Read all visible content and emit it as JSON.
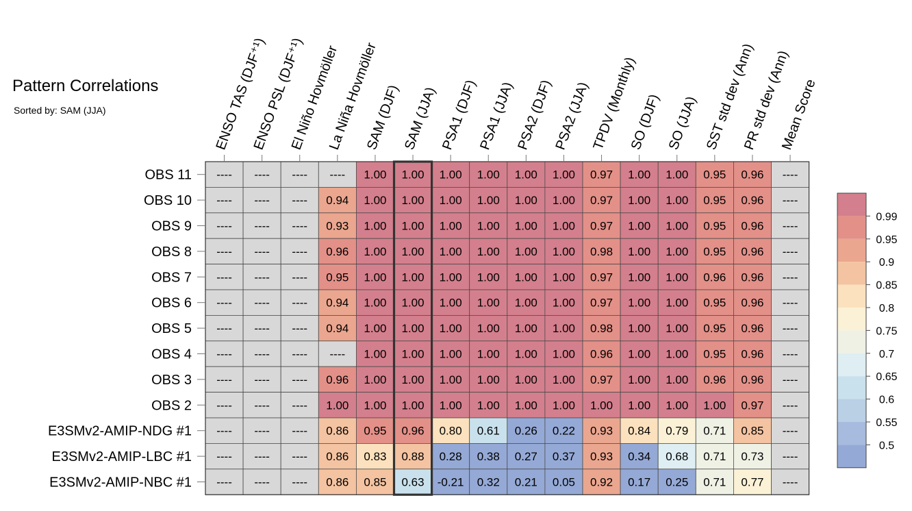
{
  "title": "Pattern Correlations",
  "subtitle": "Sorted by: SAM (JJA)",
  "chart_data": {
    "type": "heatmap",
    "title": "Pattern Correlations",
    "subtitle": "Sorted by: SAM (JJA)",
    "highlighted_column": "SAM (JJA)",
    "columns": [
      "ENSO TAS (DJF⁺¹)",
      "ENSO PSL (DJF⁺¹)",
      "El Niño Hovmöller",
      "La Niña Hovmöller",
      "SAM (DJF)",
      "SAM (JJA)",
      "PSA1 (DJF)",
      "PSA1 (JJA)",
      "PSA2 (DJF)",
      "PSA2 (JJA)",
      "TPDV (Monthly)",
      "SO (DJF)",
      "SO (JJA)",
      "SST std dev (Ann)",
      "PR std dev (Ann)",
      "Mean Score"
    ],
    "rows": [
      {
        "name": "OBS 11",
        "values": [
          null,
          null,
          null,
          null,
          "1.00",
          "1.00",
          "1.00",
          "1.00",
          "1.00",
          "1.00",
          "0.97",
          "1.00",
          "1.00",
          "0.95",
          "0.96",
          null
        ]
      },
      {
        "name": "OBS 10",
        "values": [
          null,
          null,
          null,
          "0.94",
          "1.00",
          "1.00",
          "1.00",
          "1.00",
          "1.00",
          "1.00",
          "0.97",
          "1.00",
          "1.00",
          "0.95",
          "0.96",
          null
        ]
      },
      {
        "name": "OBS 9",
        "values": [
          null,
          null,
          null,
          "0.93",
          "1.00",
          "1.00",
          "1.00",
          "1.00",
          "1.00",
          "1.00",
          "0.97",
          "1.00",
          "1.00",
          "0.95",
          "0.96",
          null
        ]
      },
      {
        "name": "OBS 8",
        "values": [
          null,
          null,
          null,
          "0.96",
          "1.00",
          "1.00",
          "1.00",
          "1.00",
          "1.00",
          "1.00",
          "0.98",
          "1.00",
          "1.00",
          "0.95",
          "0.96",
          null
        ]
      },
      {
        "name": "OBS 7",
        "values": [
          null,
          null,
          null,
          "0.95",
          "1.00",
          "1.00",
          "1.00",
          "1.00",
          "1.00",
          "1.00",
          "0.97",
          "1.00",
          "1.00",
          "0.96",
          "0.96",
          null
        ]
      },
      {
        "name": "OBS 6",
        "values": [
          null,
          null,
          null,
          "0.94",
          "1.00",
          "1.00",
          "1.00",
          "1.00",
          "1.00",
          "1.00",
          "0.97",
          "1.00",
          "1.00",
          "0.95",
          "0.96",
          null
        ]
      },
      {
        "name": "OBS 5",
        "values": [
          null,
          null,
          null,
          "0.94",
          "1.00",
          "1.00",
          "1.00",
          "1.00",
          "1.00",
          "1.00",
          "0.98",
          "1.00",
          "1.00",
          "0.95",
          "0.96",
          null
        ]
      },
      {
        "name": "OBS 4",
        "values": [
          null,
          null,
          null,
          null,
          "1.00",
          "1.00",
          "1.00",
          "1.00",
          "1.00",
          "1.00",
          "0.96",
          "1.00",
          "1.00",
          "0.95",
          "0.96",
          null
        ]
      },
      {
        "name": "OBS 3",
        "values": [
          null,
          null,
          null,
          "0.96",
          "1.00",
          "1.00",
          "1.00",
          "1.00",
          "1.00",
          "1.00",
          "0.97",
          "1.00",
          "1.00",
          "0.96",
          "0.96",
          null
        ]
      },
      {
        "name": "OBS 2",
        "values": [
          null,
          null,
          null,
          "1.00",
          "1.00",
          "1.00",
          "1.00",
          "1.00",
          "1.00",
          "1.00",
          "1.00",
          "1.00",
          "1.00",
          "1.00",
          "0.97",
          null
        ]
      },
      {
        "name": "E3SMv2-AMIP-NDG #1",
        "values": [
          null,
          null,
          null,
          "0.86",
          "0.95",
          "0.96",
          "0.80",
          "0.61",
          "0.26",
          "0.22",
          "0.93",
          "0.84",
          "0.79",
          "0.71",
          "0.85",
          null
        ]
      },
      {
        "name": "E3SMv2-AMIP-LBC #1",
        "values": [
          null,
          null,
          null,
          "0.86",
          "0.83",
          "0.88",
          "0.28",
          "0.38",
          "0.27",
          "0.37",
          "0.93",
          "0.34",
          "0.68",
          "0.71",
          "0.73",
          null
        ]
      },
      {
        "name": "E3SMv2-AMIP-NBC #1",
        "values": [
          null,
          null,
          null,
          "0.86",
          "0.85",
          "0.63",
          "-0.21",
          "0.32",
          "0.21",
          "0.05",
          "0.92",
          "0.17",
          "0.25",
          "0.71",
          "0.77",
          null
        ]
      }
    ],
    "missing_label": "----",
    "colorbar": {
      "tick_labels": [
        "0.99",
        "0.95",
        "0.9",
        "0.85",
        "0.8",
        "0.75",
        "0.7",
        "0.65",
        "0.6",
        "0.55",
        "0.5"
      ],
      "thresholds": [
        0.99,
        0.95,
        0.9,
        0.85,
        0.8,
        0.75,
        0.7,
        0.65,
        0.6,
        0.55,
        0.5
      ],
      "colors": [
        "#d47f8d",
        "#e39088",
        "#eba68f",
        "#f4c3a1",
        "#fbe1bd",
        "#fbf1d6",
        "#eff1e5",
        "#deeef2",
        "#c9e1ec",
        "#b9d0e5",
        "#a6bbdd",
        "#95a9d6"
      ],
      "missing_color": "#d8d8d8"
    }
  }
}
